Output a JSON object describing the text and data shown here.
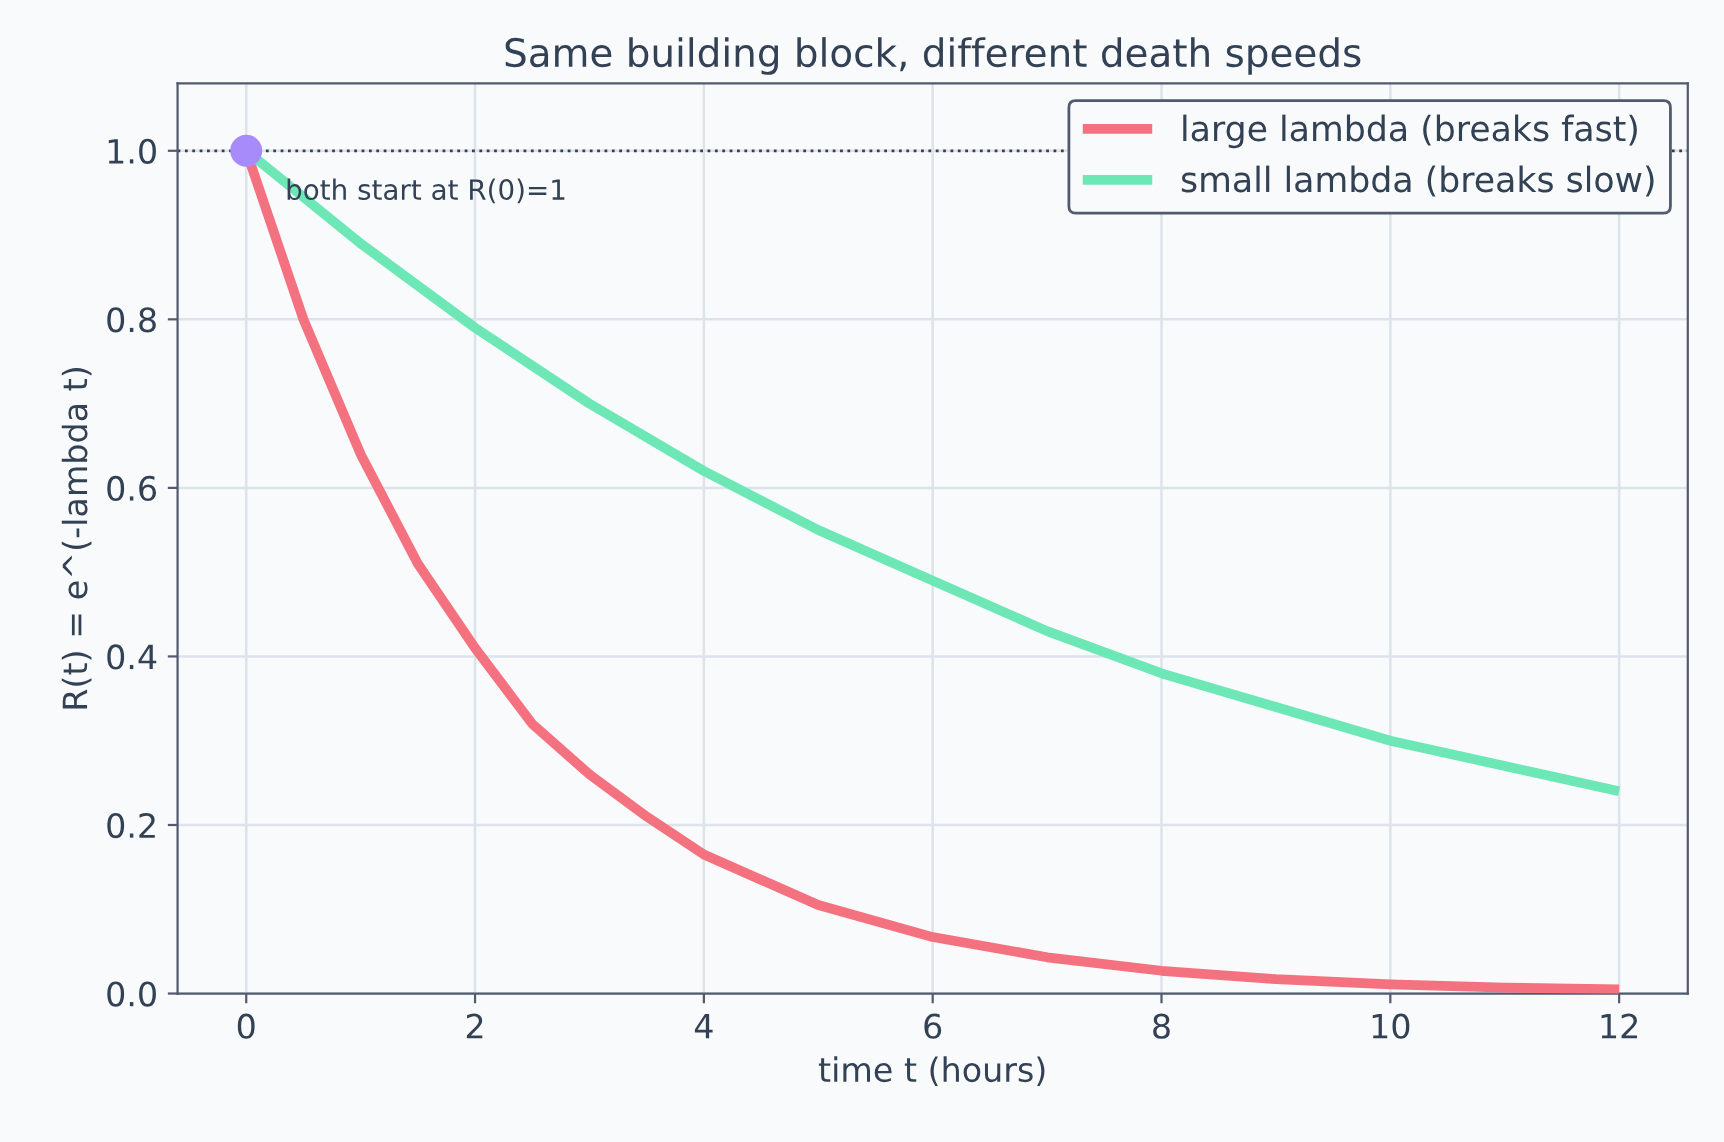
{
  "chart_data": {
    "type": "line",
    "title": "Same building block, different death speeds",
    "xlabel": "time t (hours)",
    "ylabel": "R(t) = e^(-lambda t)",
    "series": [
      {
        "name": "large lambda (breaks fast)",
        "color": "#f4727f",
        "x": [
          0,
          0.5,
          1,
          1.5,
          2,
          2.5,
          3,
          3.5,
          4,
          5,
          6,
          7,
          8,
          9,
          10,
          11,
          12
        ],
        "values": [
          1.0,
          0.8,
          0.64,
          0.51,
          0.41,
          0.32,
          0.26,
          0.21,
          0.165,
          0.105,
          0.067,
          0.043,
          0.027,
          0.017,
          0.011,
          0.007,
          0.005
        ]
      },
      {
        "name": "small lambda (breaks slow)",
        "color": "#6ee7b7",
        "x": [
          0,
          1,
          2,
          3,
          4,
          5,
          6,
          7,
          8,
          9,
          10,
          11,
          12
        ],
        "values": [
          1.0,
          0.89,
          0.79,
          0.7,
          0.62,
          0.55,
          0.49,
          0.43,
          0.38,
          0.34,
          0.3,
          0.27,
          0.24
        ]
      },
      {
        "type": "scatter",
        "color": "#a78bfa",
        "x": [
          0
        ],
        "values": [
          1.0
        ]
      }
    ],
    "ref_lines": [
      {
        "axis": "y",
        "value": 1.0,
        "color": "#334155",
        "line_style": "dotted"
      }
    ],
    "annotations": [
      {
        "text": "both start at R(0)=1",
        "x": 0,
        "y": 1.0
      }
    ],
    "xlim": [
      -0.6,
      12.6
    ],
    "ylim": [
      0,
      1.08
    ],
    "xticks": [
      0,
      2,
      4,
      6,
      8,
      10,
      12
    ],
    "yticks": [
      {
        "value": 0,
        "label": "0.0"
      },
      {
        "value": 0.2,
        "label": "0.2"
      },
      {
        "value": 0.4,
        "label": "0.4"
      },
      {
        "value": 0.6,
        "label": "0.6"
      },
      {
        "value": 0.8,
        "label": "0.8"
      },
      {
        "value": 1.0,
        "label": "1.0"
      }
    ],
    "grid": true,
    "legend": "top right"
  }
}
